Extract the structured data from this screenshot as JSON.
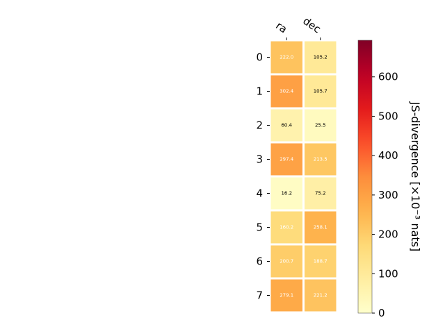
{
  "chart_data": {
    "type": "heatmap",
    "title": "",
    "x_categories": [
      "ra",
      "dec"
    ],
    "y_categories": [
      "0",
      "1",
      "2",
      "3",
      "4",
      "5",
      "6",
      "7"
    ],
    "values": [
      [
        222.0,
        105.2
      ],
      [
        302.4,
        105.7
      ],
      [
        60.4,
        25.5
      ],
      [
        297.4,
        213.5
      ],
      [
        16.2,
        75.2
      ],
      [
        160.2,
        258.1
      ],
      [
        200.7,
        188.7
      ],
      [
        279.1,
        221.2
      ]
    ],
    "cell_labels": [
      [
        "222.0",
        "105.2"
      ],
      [
        "302.4",
        "105.7"
      ],
      [
        "60.4",
        "25.5"
      ],
      [
        "297.4",
        "213.5"
      ],
      [
        "16.2",
        "75.2"
      ],
      [
        "160.2",
        "258.1"
      ],
      [
        "200.7",
        "188.7"
      ],
      [
        "279.1",
        "221.2"
      ]
    ],
    "colorbar": {
      "label": "JS-divergence [×10⁻³ nats]",
      "range": [
        0,
        693
      ],
      "ticks": [
        0,
        100,
        200,
        300,
        400,
        500,
        600
      ],
      "tick_labels": [
        "0",
        "100",
        "200",
        "300",
        "400",
        "500",
        "600"
      ],
      "colormap": "YlOrRd"
    },
    "grid": false,
    "x_axis_position": "top"
  }
}
